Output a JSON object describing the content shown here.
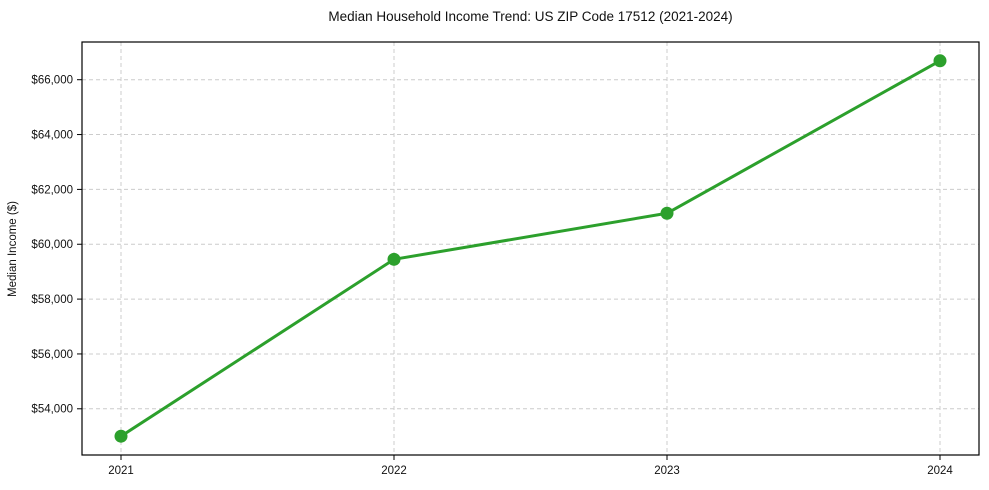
{
  "window": {
    "background": "#ffffff"
  },
  "chart_data": {
    "type": "line",
    "title": "Median Household Income Trend: US ZIP Code 17512 (2021-2024)",
    "xlabel": "",
    "ylabel": "Median Income ($)",
    "categories": [
      "2021",
      "2022",
      "2023",
      "2024"
    ],
    "series": [
      {
        "name": "Median Household Income",
        "values": [
          53000,
          59450,
          61130,
          66690
        ],
        "color": "#2ca02c",
        "marker": "circle"
      }
    ],
    "x_tick_labels": [
      "2021",
      "2022",
      "2023",
      "2024"
    ],
    "y_ticks": [
      54000,
      56000,
      58000,
      60000,
      62000,
      64000,
      66000
    ],
    "y_tick_labels": [
      "$54,000",
      "$56,000",
      "$58,000",
      "$60,000",
      "$62,000",
      "$64,000",
      "$66,000"
    ],
    "ylim": [
      52315,
      67375
    ],
    "grid": true,
    "grid_style": "dashed",
    "grid_color": "#cccccc",
    "spine_color": "#000000",
    "legend_position": "none"
  }
}
